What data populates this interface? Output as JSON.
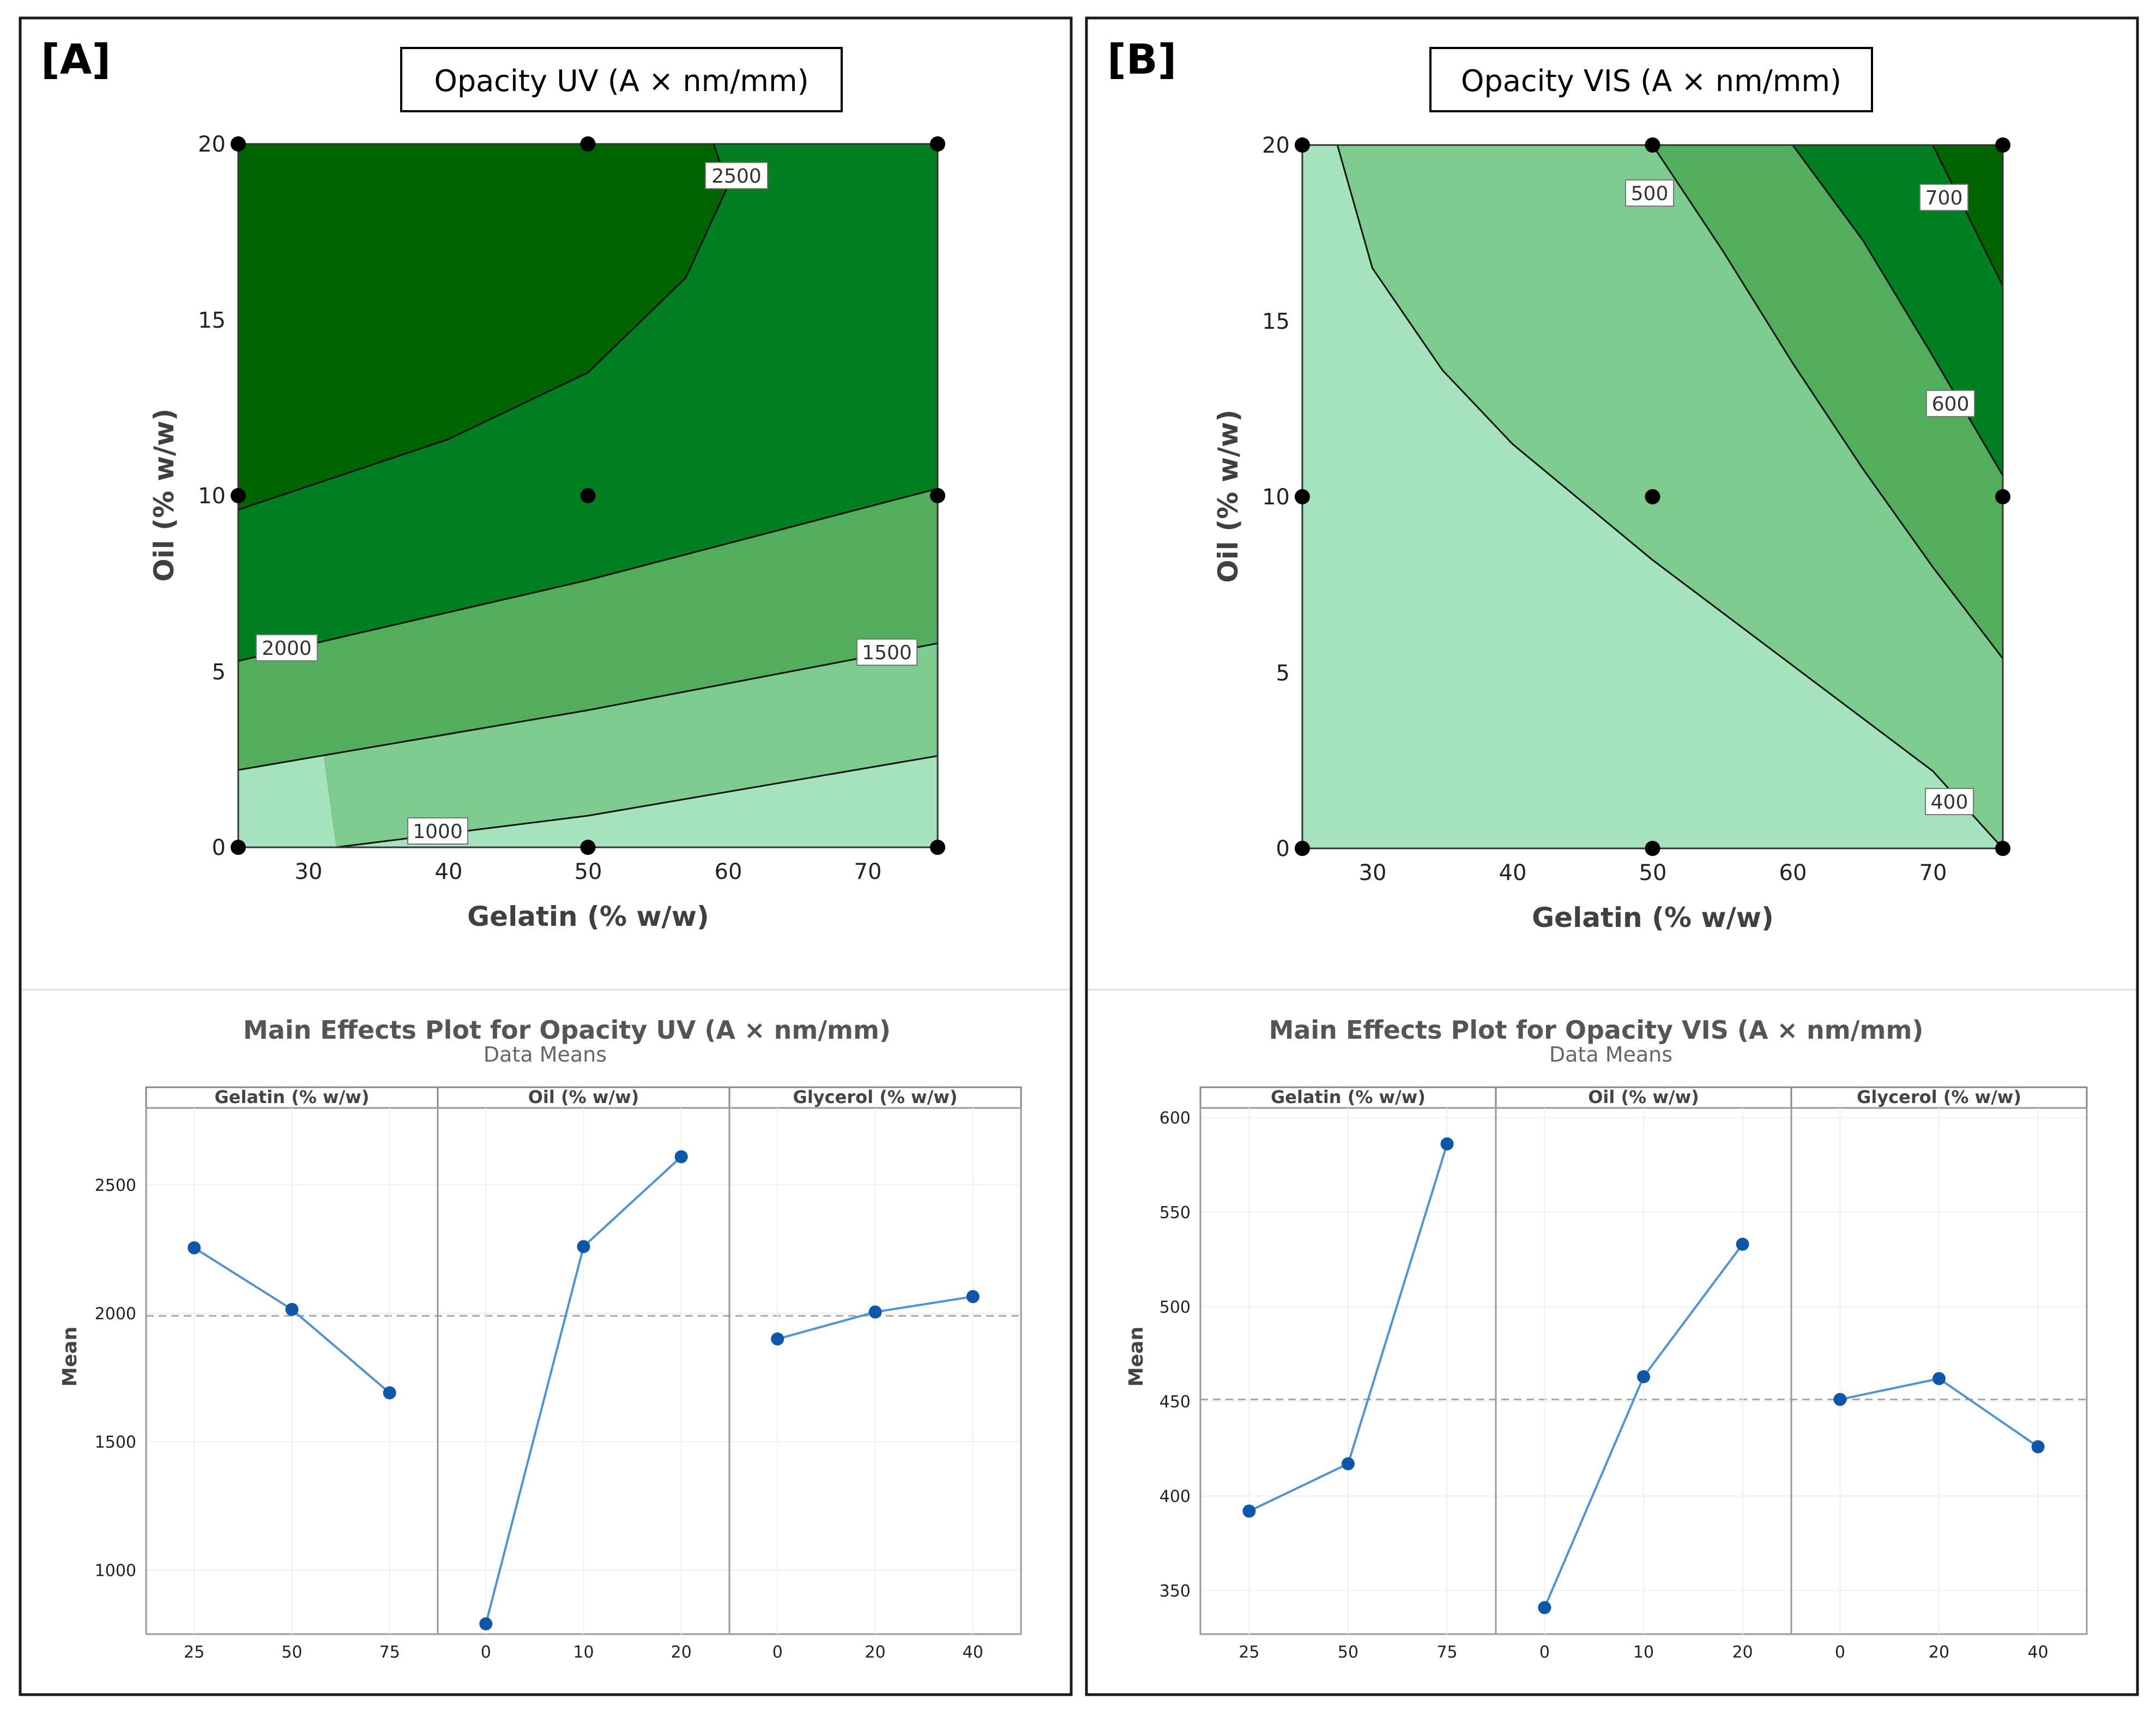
{
  "panels": [
    {
      "tag": "[A]",
      "contour": {
        "title": "Opacity UV (A × nm/mm)",
        "xlabel": "Gelatin (% w/w)",
        "ylabel": "Oil (% w/w)",
        "xticks": [
          30,
          40,
          50,
          60,
          70
        ],
        "yticks": [
          0,
          5,
          10,
          15,
          20
        ],
        "xlim": [
          25,
          75
        ],
        "ylim": [
          0,
          20
        ],
        "colors": [
          "#a6e3bc",
          "#7ecb8f",
          "#52ae5c",
          "#007f20",
          "#006400"
        ],
        "contour_labels": [
          "1000",
          "1500",
          "2000",
          "2500"
        ],
        "design_points": [
          [
            25,
            0
          ],
          [
            50,
            0
          ],
          [
            75,
            0
          ],
          [
            25,
            10
          ],
          [
            50,
            10
          ],
          [
            75,
            10
          ],
          [
            25,
            20
          ],
          [
            50,
            20
          ],
          [
            75,
            20
          ]
        ]
      },
      "main_effects": {
        "title": "Main Effects Plot for Opacity UV (A × nm/mm)",
        "subtitle": "Data Means",
        "ylabel": "Mean",
        "yticks": [
          1000,
          1500,
          2000,
          2500
        ],
        "ylim": [
          750,
          2800
        ],
        "reference_mean": 1990,
        "factors": [
          {
            "name": "Gelatin (% w/w)",
            "levels": [
              "25",
              "50",
              "75"
            ],
            "means": [
              2255,
              2015,
              1690
            ]
          },
          {
            "name": "Oil (% w/w)",
            "levels": [
              "0",
              "10",
              "20"
            ],
            "means": [
              790,
              2260,
              2610
            ]
          },
          {
            "name": "Glycerol (% w/w)",
            "levels": [
              "0",
              "20",
              "40"
            ],
            "means": [
              1900,
              2005,
              2065
            ]
          }
        ]
      }
    },
    {
      "tag": "[B]",
      "contour": {
        "title": "Opacity VIS (A × nm/mm)",
        "xlabel": "Gelatin (% w/w)",
        "ylabel": "Oil (% w/w)",
        "xticks": [
          30,
          40,
          50,
          60,
          70
        ],
        "yticks": [
          0,
          5,
          10,
          15,
          20
        ],
        "xlim": [
          25,
          75
        ],
        "ylim": [
          0,
          20
        ],
        "colors": [
          "#a6e3bc",
          "#7ecb8f",
          "#52ae5c",
          "#007f20",
          "#006400"
        ],
        "contour_labels": [
          "400",
          "500",
          "600",
          "700"
        ],
        "design_points": [
          [
            25,
            0
          ],
          [
            50,
            0
          ],
          [
            75,
            0
          ],
          [
            25,
            10
          ],
          [
            50,
            10
          ],
          [
            75,
            10
          ],
          [
            25,
            20
          ],
          [
            50,
            20
          ],
          [
            75,
            20
          ]
        ]
      },
      "main_effects": {
        "title": "Main Effects Plot for Opacity VIS (A × nm/mm)",
        "subtitle": "Data Means",
        "ylabel": "Mean",
        "yticks": [
          350,
          400,
          450,
          500,
          550,
          600
        ],
        "ylim": [
          327,
          605
        ],
        "reference_mean": 451,
        "factors": [
          {
            "name": "Gelatin (% w/w)",
            "levels": [
              "25",
              "50",
              "75"
            ],
            "means": [
              392,
              417,
              586
            ]
          },
          {
            "name": "Oil (% w/w)",
            "levels": [
              "0",
              "10",
              "20"
            ],
            "means": [
              341,
              463,
              533
            ]
          },
          {
            "name": "Glycerol (% w/w)",
            "levels": [
              "0",
              "20",
              "40"
            ],
            "means": [
              451,
              462,
              426
            ]
          }
        ]
      }
    }
  ],
  "chart_data": [
    {
      "type": "contour",
      "title": "Opacity UV (A × nm/mm)",
      "xlabel": "Gelatin (% w/w)",
      "ylabel": "Oil (% w/w)",
      "xlim": [
        25,
        75
      ],
      "ylim": [
        0,
        20
      ],
      "levels": [
        1000,
        1500,
        2000,
        2500
      ],
      "contour_lines": [
        {
          "level": 1000,
          "points": [
            [
              32,
              0
            ],
            [
              50,
              0.9
            ],
            [
              75,
              2.6
            ]
          ]
        },
        {
          "level": 1500,
          "points": [
            [
              25,
              2.2
            ],
            [
              50,
              3.9
            ],
            [
              75,
              5.8
            ]
          ]
        },
        {
          "level": 2000,
          "points": [
            [
              25,
              5.3
            ],
            [
              50,
              7.6
            ],
            [
              75,
              10.2
            ]
          ]
        },
        {
          "level": 2500,
          "points": [
            [
              25,
              9.6
            ],
            [
              40,
              11.6
            ],
            [
              50,
              13.5
            ],
            [
              57,
              16.2
            ],
            [
              60,
              18.8
            ],
            [
              59,
              20
            ]
          ]
        }
      ],
      "design_points": [
        [
          25,
          0
        ],
        [
          50,
          0
        ],
        [
          75,
          0
        ],
        [
          25,
          10
        ],
        [
          50,
          10
        ],
        [
          75,
          10
        ],
        [
          25,
          20
        ],
        [
          50,
          20
        ],
        [
          75,
          20
        ]
      ]
    },
    {
      "type": "line",
      "title": "Main Effects Plot for Opacity UV (A × nm/mm)",
      "subtitle": "Data Means",
      "ylabel": "Mean",
      "ylim": [
        750,
        2800
      ],
      "series": [
        {
          "name": "Gelatin (% w/w)",
          "x": [
            "25",
            "50",
            "75"
          ],
          "values": [
            2255,
            2015,
            1690
          ]
        },
        {
          "name": "Oil (% w/w)",
          "x": [
            "0",
            "10",
            "20"
          ],
          "values": [
            790,
            2260,
            2610
          ]
        },
        {
          "name": "Glycerol (% w/w)",
          "x": [
            "0",
            "20",
            "40"
          ],
          "values": [
            1900,
            2005,
            2065
          ]
        }
      ],
      "reference_mean": 1990
    },
    {
      "type": "contour",
      "title": "Opacity VIS (A × nm/mm)",
      "xlabel": "Gelatin (% w/w)",
      "ylabel": "Oil (% w/w)",
      "xlim": [
        25,
        75
      ],
      "ylim": [
        0,
        20
      ],
      "levels": [
        400,
        500,
        600,
        700
      ],
      "contour_lines": [
        {
          "level": 400,
          "points": [
            [
              27.5,
              20
            ],
            [
              30,
              16.5
            ],
            [
              35,
              13.6
            ],
            [
              40,
              11.5
            ],
            [
              50,
              8.2
            ],
            [
              60,
              5.2
            ],
            [
              70,
              2.2
            ],
            [
              75,
              0
            ]
          ]
        },
        {
          "level": 500,
          "points": [
            [
              50,
              20
            ],
            [
              55,
              17
            ],
            [
              60,
              13.8
            ],
            [
              65,
              10.8
            ],
            [
              70,
              8
            ],
            [
              75,
              5.4
            ]
          ]
        },
        {
          "level": 600,
          "points": [
            [
              60,
              20
            ],
            [
              65,
              17.3
            ],
            [
              70,
              14
            ],
            [
              75,
              10.6
            ]
          ]
        },
        {
          "level": 700,
          "points": [
            [
              70,
              20
            ],
            [
              75,
              16
            ]
          ]
        }
      ],
      "design_points": [
        [
          25,
          0
        ],
        [
          50,
          0
        ],
        [
          75,
          0
        ],
        [
          25,
          10
        ],
        [
          50,
          10
        ],
        [
          75,
          10
        ],
        [
          25,
          20
        ],
        [
          50,
          20
        ],
        [
          75,
          20
        ]
      ]
    },
    {
      "type": "line",
      "title": "Main Effects Plot for Opacity VIS (A × nm/mm)",
      "subtitle": "Data Means",
      "ylabel": "Mean",
      "ylim": [
        327,
        605
      ],
      "series": [
        {
          "name": "Gelatin (% w/w)",
          "x": [
            "25",
            "50",
            "75"
          ],
          "values": [
            392,
            417,
            586
          ]
        },
        {
          "name": "Oil (% w/w)",
          "x": [
            "0",
            "10",
            "20"
          ],
          "values": [
            341,
            463,
            533
          ]
        },
        {
          "name": "Glycerol (% w/w)",
          "x": [
            "0",
            "20",
            "40"
          ],
          "values": [
            451,
            462,
            426
          ]
        }
      ],
      "reference_mean": 451
    }
  ]
}
